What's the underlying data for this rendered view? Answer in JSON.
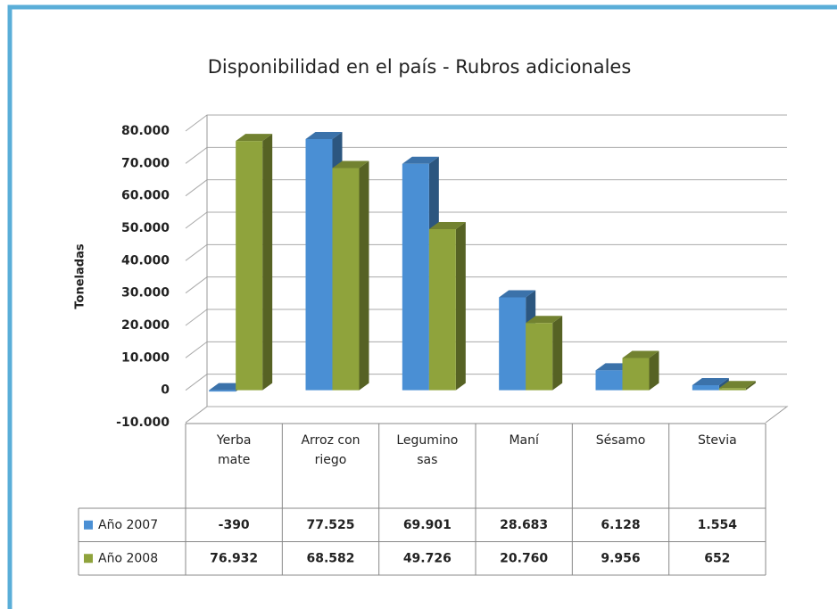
{
  "chart_data": {
    "type": "bar3d",
    "title": "Disponibilidad en el país  - Rubros adicionales",
    "y_label": "Toneladas",
    "categories": [
      "Yerba mate",
      "Arroz con riego",
      "Leguminosas",
      "Maní",
      "Sésamo",
      "Stevia"
    ],
    "series": [
      {
        "name": "Año 2007",
        "color": "#4a8fd4",
        "values": [
          -390,
          77525,
          69901,
          28683,
          6128,
          1554
        ],
        "value_labels": [
          "-390",
          "77.525",
          "69.901",
          "28.683",
          "6.128",
          "1.554"
        ]
      },
      {
        "name": "Año 2008",
        "color": "#8fa33c",
        "values": [
          76932,
          68582,
          49726,
          20760,
          9956,
          652
        ],
        "value_labels": [
          "76.932",
          "68.582",
          "49.726",
          "20.760",
          "9.956",
          "652"
        ]
      }
    ],
    "ylim": [
      -10000,
      80000
    ],
    "yticks": [
      {
        "value": -10000,
        "label": "-10.000"
      },
      0,
      {
        "value": 10000,
        "label": "10.000"
      },
      {
        "value": 20000,
        "label": "20.000"
      },
      {
        "value": 30000,
        "label": "30.000"
      },
      {
        "value": 40000,
        "label": "40.000"
      },
      {
        "value": 50000,
        "label": "50.000"
      },
      {
        "value": 60000,
        "label": "60.000"
      },
      {
        "value": 70000,
        "label": "70.000"
      },
      {
        "value": 80000,
        "label": "80.000"
      }
    ],
    "grid": true,
    "legend": "table"
  }
}
